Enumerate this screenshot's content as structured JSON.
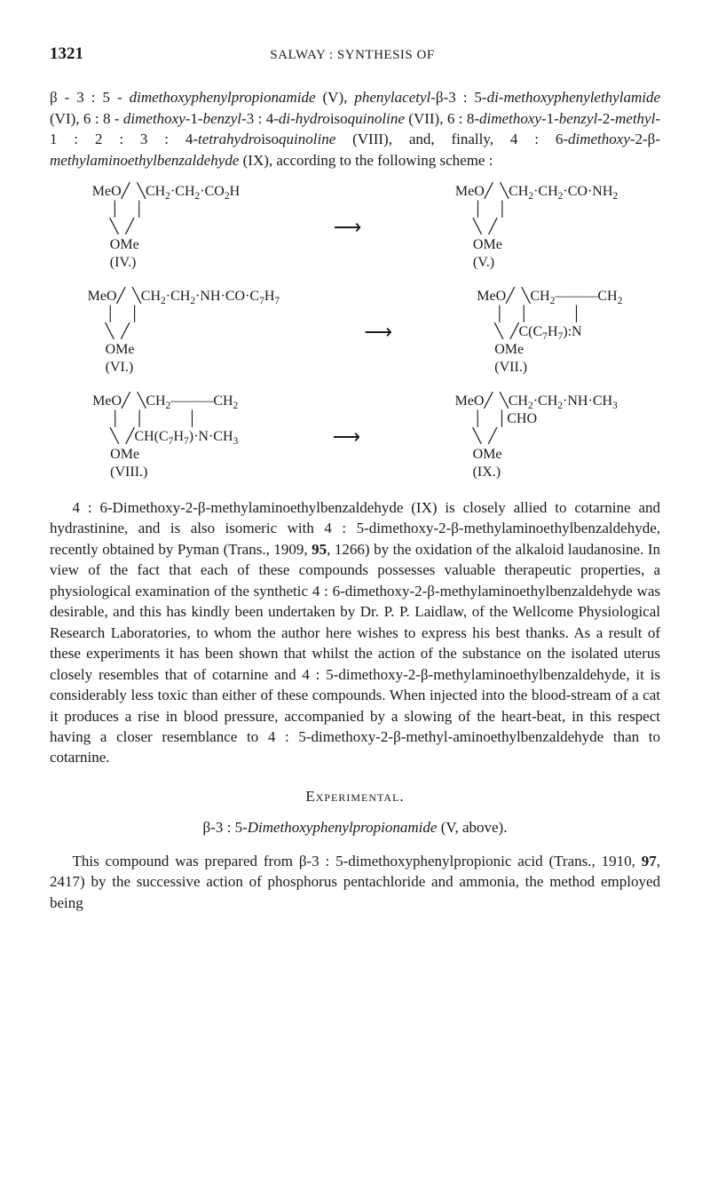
{
  "header": {
    "page_number": "1321",
    "running_head": "SALWAY : SYNTHESIS OF"
  },
  "intro": {
    "html": "β - 3 : 5 - <i>dimethoxyphenylpropionamide</i> (V), <i>phenylacetyl</i>-β-3 : 5-<i>di-methoxyphenylethylamide</i> (VI), 6 : 8 - <i>dimethoxy</i>-1-<i>benzyl</i>-3 : 4-<i>di-hydro</i>iso<i>quinoline</i> (VII), 6 : 8-<i>dimethoxy</i>-1-<i>benzyl</i>-2-<i>methyl</i>-1 : 2 : 3 : 4-<i>tetrahydro</i>iso<i>quinoline</i> (VIII), and, finally, 4 : 6-<i>dimethoxy</i>-2-β-<i>methylaminoethylbenzaldehyde</i> (IX), according to the following scheme :"
  },
  "scheme": {
    "rows": [
      {
        "left": {
          "lines": [
            "MeO╱  ╲CH<sub>2</sub>·CH<sub>2</sub>·CO<sub>2</sub>H",
            "     │    │",
            "     ╲  ╱",
            "     OMe",
            "     (IV.)"
          ]
        },
        "arrow": "⟶",
        "right": {
          "lines": [
            "MeO╱  ╲CH<sub>2</sub>·CH<sub>2</sub>·CO·NH<sub>2</sub>",
            "     │    │",
            "     ╲  ╱",
            "     OMe",
            "     (V.)"
          ]
        }
      },
      {
        "left": {
          "lines": [
            "MeO╱  ╲CH<sub>2</sub>·CH<sub>2</sub>·NH·CO·C<sub>7</sub>H<sub>7</sub>",
            "     │    │",
            "     ╲  ╱",
            "     OMe",
            "     (VI.)"
          ]
        },
        "arrow": "⟶",
        "right": {
          "lines": [
            "MeO╱  ╲CH<sub>2</sub>———CH<sub>2</sub>",
            "     │    │            │",
            "     ╲  ╱C(C<sub>7</sub>H<sub>7</sub>):N",
            "     OMe",
            "     (VII.)"
          ]
        }
      },
      {
        "left": {
          "lines": [
            "MeO╱  ╲CH<sub>2</sub>———CH<sub>2</sub>",
            "     │    │            │",
            "     ╲  ╱CH(C<sub>7</sub>H<sub>7</sub>)·N·CH<sub>3</sub>",
            "     OMe",
            "     (VIII.)"
          ]
        },
        "arrow": "⟶",
        "right": {
          "lines": [
            "MeO╱  ╲CH<sub>2</sub>·CH<sub>2</sub>·NH·CH<sub>3</sub>",
            "     │    │CHO",
            "     ╲  ╱",
            "     OMe",
            "     (IX.)"
          ]
        }
      }
    ]
  },
  "para2": {
    "html": "4 : 6-Dimethoxy-2-β-methylaminoethylbenzaldehyde (IX) is closely allied to cotarnine and hydrastinine, and is also isomeric with 4 : 5-dimethoxy-2-β-methylaminoethylbenzaldehyde, recently obtained by Pyman (Trans., 1909, <b>95</b>, 1266) by the oxidation of the alkaloid laudanosine. In view of the fact that each of these compounds possesses valuable therapeutic properties, a physiological examination of the synthetic 4 : 6-dimethoxy-2-β-methylaminoethylbenzaldehyde was desirable, and this has kindly been undertaken by Dr. P. P. Laidlaw, of the Wellcome Physiological Research Laboratories, to whom the author here wishes to express his best thanks. As a result of these experiments it has been shown that whilst the action of the substance on the isolated uterus closely resembles that of cotarnine and 4 : 5-dimethoxy-2-β-methylaminoethylbenzaldehyde, it is considerably less toxic than either of these compounds. When injected into the blood-stream of a cat it produces a rise in blood pressure, accompanied by a slowing of the heart-beat, in this respect having a closer resemblance to 4 : 5-dimethoxy-2-β-methyl-aminoethylbenzaldehyde than to cotarnine."
  },
  "experimental": {
    "heading": "Experimental.",
    "subtitle_html": "β-3 : 5-<i>Dimethoxyphenylpropionamide</i> (V, above).",
    "para_html": "This compound was prepared from β-3 : 5-dimethoxyphenylpropionic acid (Trans., 1910, <b>97</b>, 2417) by the successive action of phosphorus pentachloride and ammonia, the method employed being"
  }
}
